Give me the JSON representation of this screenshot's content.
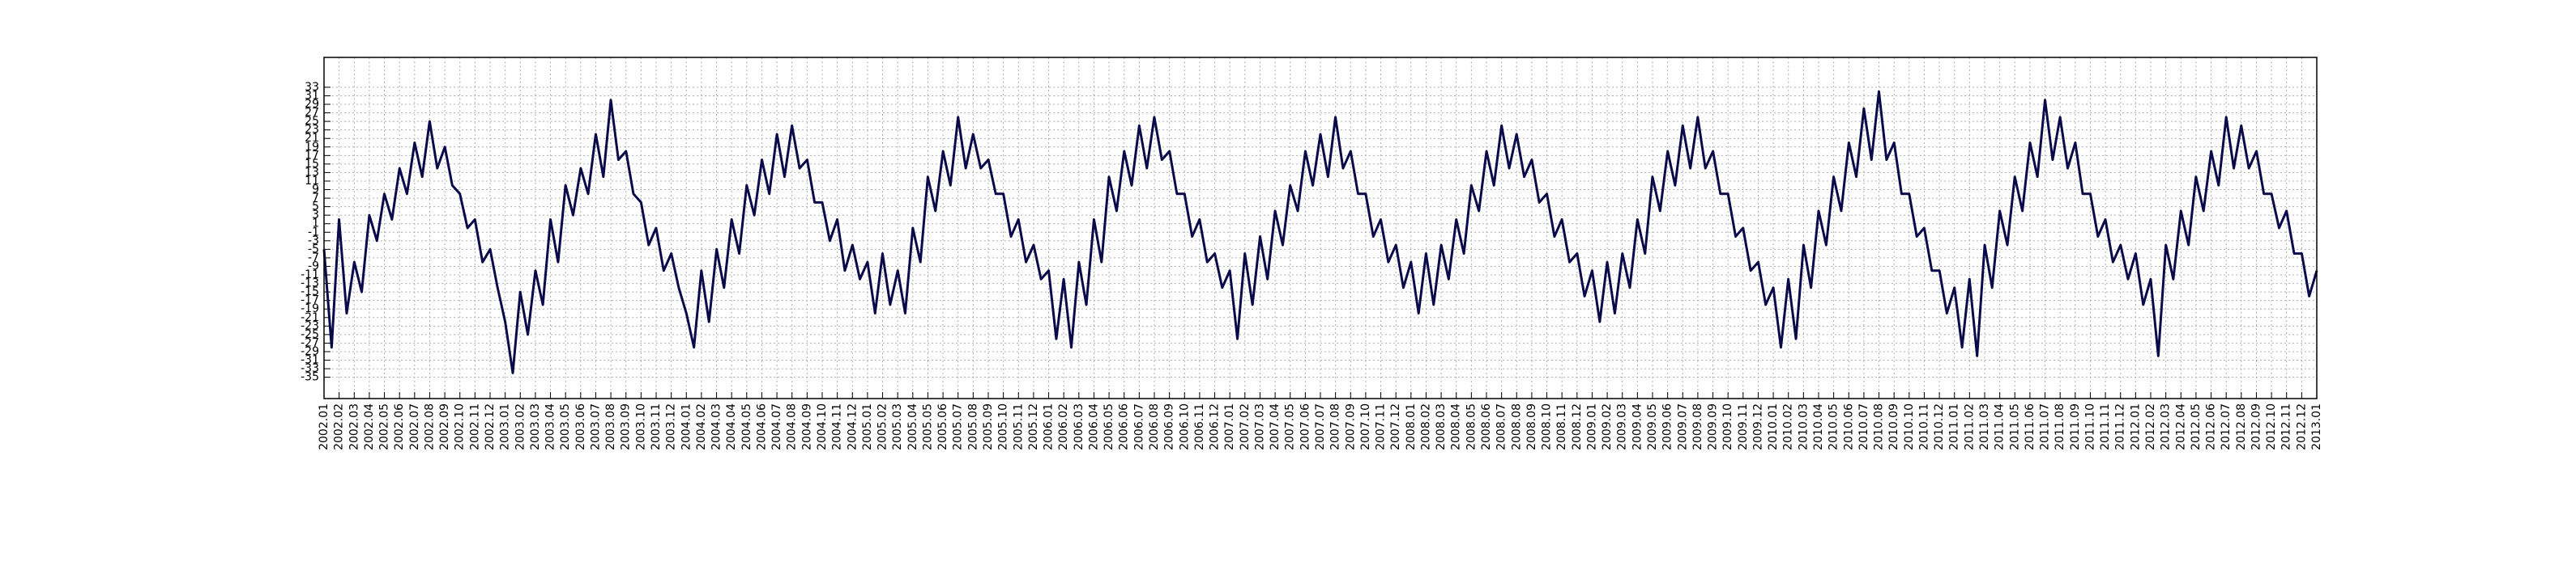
{
  "chart_data": {
    "type": "line",
    "color": "#0a0a4a",
    "grid": true,
    "xlim": [
      2002,
      2013
    ],
    "ylim": [
      -40,
      40
    ],
    "yticks": [
      -35,
      -33,
      -31,
      -29,
      -27,
      -25,
      -23,
      -21,
      -19,
      -17,
      -15,
      -13,
      -11,
      -9,
      -7,
      -5,
      -3,
      -1,
      1,
      3,
      5,
      7,
      9,
      11,
      13,
      15,
      17,
      19,
      21,
      23,
      25,
      27,
      29,
      31,
      33
    ],
    "xticks": [
      {
        "value": 2002,
        "label": "2002.01"
      },
      {
        "value": 2002.0833,
        "label": "2002.02"
      },
      {
        "value": 2002.1667,
        "label": "2002.03"
      },
      {
        "value": 2002.25,
        "label": "2002.04"
      },
      {
        "value": 2002.3333,
        "label": "2002.05"
      },
      {
        "value": 2002.4167,
        "label": "2002.06"
      },
      {
        "value": 2002.5,
        "label": "2002.07"
      },
      {
        "value": 2002.5833,
        "label": "2002.08"
      },
      {
        "value": 2002.6667,
        "label": "2002.09"
      },
      {
        "value": 2002.75,
        "label": "2002.10"
      },
      {
        "value": 2002.8333,
        "label": "2002.11"
      },
      {
        "value": 2002.9167,
        "label": "2002.12"
      },
      {
        "value": 2003,
        "label": "2003.01"
      },
      {
        "value": 2003.0833,
        "label": "2003.02"
      },
      {
        "value": 2003.1667,
        "label": "2003.03"
      },
      {
        "value": 2003.25,
        "label": "2003.04"
      },
      {
        "value": 2003.3333,
        "label": "2003.05"
      },
      {
        "value": 2003.4167,
        "label": "2003.06"
      },
      {
        "value": 2003.5,
        "label": "2003.07"
      },
      {
        "value": 2003.5833,
        "label": "2003.08"
      },
      {
        "value": 2003.6667,
        "label": "2003.09"
      },
      {
        "value": 2003.75,
        "label": "2003.10"
      },
      {
        "value": 2003.8333,
        "label": "2003.11"
      },
      {
        "value": 2003.9167,
        "label": "2003.12"
      },
      {
        "value": 2004,
        "label": "2004.01"
      },
      {
        "value": 2004.0833,
        "label": "2004.02"
      },
      {
        "value": 2004.1667,
        "label": "2004.03"
      },
      {
        "value": 2004.25,
        "label": "2004.04"
      },
      {
        "value": 2004.3333,
        "label": "2004.05"
      },
      {
        "value": 2004.4167,
        "label": "2004.06"
      },
      {
        "value": 2004.5,
        "label": "2004.07"
      },
      {
        "value": 2004.5833,
        "label": "2004.08"
      },
      {
        "value": 2004.6667,
        "label": "2004.09"
      },
      {
        "value": 2004.75,
        "label": "2004.10"
      },
      {
        "value": 2004.8333,
        "label": "2004.11"
      },
      {
        "value": 2004.9167,
        "label": "2004.12"
      },
      {
        "value": 2005,
        "label": "2005.01"
      },
      {
        "value": 2005.0833,
        "label": "2005.02"
      },
      {
        "value": 2005.1667,
        "label": "2005.03"
      },
      {
        "value": 2005.25,
        "label": "2005.04"
      },
      {
        "value": 2005.3333,
        "label": "2005.05"
      },
      {
        "value": 2005.4167,
        "label": "2005.06"
      },
      {
        "value": 2005.5,
        "label": "2005.07"
      },
      {
        "value": 2005.5833,
        "label": "2005.08"
      },
      {
        "value": 2005.6667,
        "label": "2005.09"
      },
      {
        "value": 2005.75,
        "label": "2005.10"
      },
      {
        "value": 2005.8333,
        "label": "2005.11"
      },
      {
        "value": 2005.9167,
        "label": "2005.12"
      },
      {
        "value": 2006,
        "label": "2006.01"
      },
      {
        "value": 2006.0833,
        "label": "2006.02"
      },
      {
        "value": 2006.1667,
        "label": "2006.03"
      },
      {
        "value": 2006.25,
        "label": "2006.04"
      },
      {
        "value": 2006.3333,
        "label": "2006.05"
      },
      {
        "value": 2006.4167,
        "label": "2006.06"
      },
      {
        "value": 2006.5,
        "label": "2006.07"
      },
      {
        "value": 2006.5833,
        "label": "2006.08"
      },
      {
        "value": 2006.6667,
        "label": "2006.09"
      },
      {
        "value": 2006.75,
        "label": "2006.10"
      },
      {
        "value": 2006.8333,
        "label": "2006.11"
      },
      {
        "value": 2006.9167,
        "label": "2006.12"
      },
      {
        "value": 2007,
        "label": "2007.01"
      },
      {
        "value": 2007.0833,
        "label": "2007.02"
      },
      {
        "value": 2007.1667,
        "label": "2007.03"
      },
      {
        "value": 2007.25,
        "label": "2007.04"
      },
      {
        "value": 2007.3333,
        "label": "2007.05"
      },
      {
        "value": 2007.4167,
        "label": "2007.06"
      },
      {
        "value": 2007.5,
        "label": "2007.07"
      },
      {
        "value": 2007.5833,
        "label": "2007.08"
      },
      {
        "value": 2007.6667,
        "label": "2007.09"
      },
      {
        "value": 2007.75,
        "label": "2007.10"
      },
      {
        "value": 2007.8333,
        "label": "2007.11"
      },
      {
        "value": 2007.9167,
        "label": "2007.12"
      },
      {
        "value": 2008,
        "label": "2008.01"
      },
      {
        "value": 2008.0833,
        "label": "2008.02"
      },
      {
        "value": 2008.1667,
        "label": "2008.03"
      },
      {
        "value": 2008.25,
        "label": "2008.04"
      },
      {
        "value": 2008.3333,
        "label": "2008.05"
      },
      {
        "value": 2008.4167,
        "label": "2008.06"
      },
      {
        "value": 2008.5,
        "label": "2008.07"
      },
      {
        "value": 2008.5833,
        "label": "2008.08"
      },
      {
        "value": 2008.6667,
        "label": "2008.09"
      },
      {
        "value": 2008.75,
        "label": "2008.10"
      },
      {
        "value": 2008.8333,
        "label": "2008.11"
      },
      {
        "value": 2008.9167,
        "label": "2008.12"
      },
      {
        "value": 2009,
        "label": "2009.01"
      },
      {
        "value": 2009.0833,
        "label": "2009.02"
      },
      {
        "value": 2009.1667,
        "label": "2009.03"
      },
      {
        "value": 2009.25,
        "label": "2009.04"
      },
      {
        "value": 2009.3333,
        "label": "2009.05"
      },
      {
        "value": 2009.4167,
        "label": "2009.06"
      },
      {
        "value": 2009.5,
        "label": "2009.07"
      },
      {
        "value": 2009.5833,
        "label": "2009.08"
      },
      {
        "value": 2009.6667,
        "label": "2009.09"
      },
      {
        "value": 2009.75,
        "label": "2009.10"
      },
      {
        "value": 2009.8333,
        "label": "2009.11"
      },
      {
        "value": 2009.9167,
        "label": "2009.12"
      },
      {
        "value": 2010,
        "label": "2010.01"
      },
      {
        "value": 2010.0833,
        "label": "2010.02"
      },
      {
        "value": 2010.1667,
        "label": "2010.03"
      },
      {
        "value": 2010.25,
        "label": "2010.04"
      },
      {
        "value": 2010.3333,
        "label": "2010.05"
      },
      {
        "value": 2010.4167,
        "label": "2010.06"
      },
      {
        "value": 2010.5,
        "label": "2010.07"
      },
      {
        "value": 2010.5833,
        "label": "2010.08"
      },
      {
        "value": 2010.6667,
        "label": "2010.09"
      },
      {
        "value": 2010.75,
        "label": "2010.10"
      },
      {
        "value": 2010.8333,
        "label": "2010.11"
      },
      {
        "value": 2010.9167,
        "label": "2010.12"
      },
      {
        "value": 2011,
        "label": "2011.01"
      },
      {
        "value": 2011.0833,
        "label": "2011.02"
      },
      {
        "value": 2011.1667,
        "label": "2011.03"
      },
      {
        "value": 2011.25,
        "label": "2011.04"
      },
      {
        "value": 2011.3333,
        "label": "2011.05"
      },
      {
        "value": 2011.4167,
        "label": "2011.06"
      },
      {
        "value": 2011.5,
        "label": "2011.07"
      },
      {
        "value": 2011.5833,
        "label": "2011.08"
      },
      {
        "value": 2011.6667,
        "label": "2011.09"
      },
      {
        "value": 2011.75,
        "label": "2011.10"
      },
      {
        "value": 2011.8333,
        "label": "2011.11"
      },
      {
        "value": 2011.9167,
        "label": "2011.12"
      },
      {
        "value": 2012,
        "label": "2012.01"
      },
      {
        "value": 2012.0833,
        "label": "2012.02"
      },
      {
        "value": 2012.1667,
        "label": "2012.03"
      },
      {
        "value": 2012.25,
        "label": "2012.04"
      },
      {
        "value": 2012.3333,
        "label": "2012.05"
      },
      {
        "value": 2012.4167,
        "label": "2012.06"
      },
      {
        "value": 2012.5,
        "label": "2012.07"
      },
      {
        "value": 2012.5833,
        "label": "2012.08"
      },
      {
        "value": 2012.6667,
        "label": "2012.09"
      },
      {
        "value": 2012.75,
        "label": "2012.10"
      },
      {
        "value": 2012.8333,
        "label": "2012.11"
      },
      {
        "value": 2012.9167,
        "label": "2012.12"
      },
      {
        "value": 2013,
        "label": "2013.01"
      }
    ],
    "x": [
      2002,
      2002.042,
      2002.083,
      2002.125,
      2002.167,
      2002.208,
      2002.25,
      2002.292,
      2002.333,
      2002.375,
      2002.417,
      2002.458,
      2002.5,
      2002.542,
      2002.583,
      2002.625,
      2002.667,
      2002.708,
      2002.75,
      2002.792,
      2002.833,
      2002.875,
      2002.917,
      2002.958,
      2003,
      2003.042,
      2003.083,
      2003.125,
      2003.167,
      2003.208,
      2003.25,
      2003.292,
      2003.333,
      2003.375,
      2003.417,
      2003.458,
      2003.5,
      2003.542,
      2003.583,
      2003.625,
      2003.667,
      2003.708,
      2003.75,
      2003.792,
      2003.833,
      2003.875,
      2003.917,
      2003.958,
      2004,
      2004.042,
      2004.083,
      2004.125,
      2004.167,
      2004.208,
      2004.25,
      2004.292,
      2004.333,
      2004.375,
      2004.417,
      2004.458,
      2004.5,
      2004.542,
      2004.583,
      2004.625,
      2004.667,
      2004.708,
      2004.75,
      2004.792,
      2004.833,
      2004.875,
      2004.917,
      2004.958,
      2005,
      2005.042,
      2005.083,
      2005.125,
      2005.167,
      2005.208,
      2005.25,
      2005.292,
      2005.333,
      2005.375,
      2005.417,
      2005.458,
      2005.5,
      2005.542,
      2005.583,
      2005.625,
      2005.667,
      2005.708,
      2005.75,
      2005.792,
      2005.833,
      2005.875,
      2005.917,
      2005.958,
      2006,
      2006.042,
      2006.083,
      2006.125,
      2006.167,
      2006.208,
      2006.25,
      2006.292,
      2006.333,
      2006.375,
      2006.417,
      2006.458,
      2006.5,
      2006.542,
      2006.583,
      2006.625,
      2006.667,
      2006.708,
      2006.75,
      2006.792,
      2006.833,
      2006.875,
      2006.917,
      2006.958,
      2007,
      2007.042,
      2007.083,
      2007.125,
      2007.167,
      2007.208,
      2007.25,
      2007.292,
      2007.333,
      2007.375,
      2007.417,
      2007.458,
      2007.5,
      2007.542,
      2007.583,
      2007.625,
      2007.667,
      2007.708,
      2007.75,
      2007.792,
      2007.833,
      2007.875,
      2007.917,
      2007.958,
      2008,
      2008.042,
      2008.083,
      2008.125,
      2008.167,
      2008.208,
      2008.25,
      2008.292,
      2008.333,
      2008.375,
      2008.417,
      2008.458,
      2008.5,
      2008.542,
      2008.583,
      2008.625,
      2008.667,
      2008.708,
      2008.75,
      2008.792,
      2008.833,
      2008.875,
      2008.917,
      2008.958,
      2009,
      2009.042,
      2009.083,
      2009.125,
      2009.167,
      2009.208,
      2009.25,
      2009.292,
      2009.333,
      2009.375,
      2009.417,
      2009.458,
      2009.5,
      2009.542,
      2009.583,
      2009.625,
      2009.667,
      2009.708,
      2009.75,
      2009.792,
      2009.833,
      2009.875,
      2009.917,
      2009.958,
      2010,
      2010.042,
      2010.083,
      2010.125,
      2010.167,
      2010.208,
      2010.25,
      2010.292,
      2010.333,
      2010.375,
      2010.417,
      2010.458,
      2010.5,
      2010.542,
      2010.583,
      2010.625,
      2010.667,
      2010.708,
      2010.75,
      2010.792,
      2010.833,
      2010.875,
      2010.917,
      2010.958,
      2011,
      2011.042,
      2011.083,
      2011.125,
      2011.167,
      2011.208,
      2011.25,
      2011.292,
      2011.333,
      2011.375,
      2011.417,
      2011.458,
      2011.5,
      2011.542,
      2011.583,
      2011.625,
      2011.667,
      2011.708,
      2011.75,
      2011.792,
      2011.833,
      2011.875,
      2011.917,
      2011.958,
      2012,
      2012.042,
      2012.083,
      2012.125,
      2012.167,
      2012.208,
      2012.25,
      2012.292,
      2012.333,
      2012.375,
      2012.417,
      2012.458,
      2012.5,
      2012.542,
      2012.583,
      2012.625,
      2012.667,
      2012.708,
      2012.75,
      2012.792,
      2012.833,
      2012.875,
      2012.917,
      2012.958,
      2013
    ],
    "values": [
      -5,
      -28,
      2,
      -20,
      -8,
      -15,
      3,
      -3,
      8,
      2,
      14,
      8,
      20,
      12,
      25,
      14,
      19,
      10,
      8,
      0,
      2,
      -8,
      -5,
      -14,
      -22,
      -34,
      -15,
      -25,
      -10,
      -18,
      2,
      -8,
      10,
      3,
      14,
      8,
      22,
      12,
      30,
      16,
      18,
      8,
      6,
      -4,
      0,
      -10,
      -6,
      -14,
      -20,
      -28,
      -10,
      -22,
      -5,
      -14,
      2,
      -6,
      10,
      3,
      16,
      8,
      22,
      12,
      24,
      14,
      16,
      6,
      6,
      -3,
      2,
      -10,
      -4,
      -12,
      -8,
      -20,
      -6,
      -18,
      -10,
      -20,
      0,
      -8,
      12,
      4,
      18,
      10,
      26,
      14,
      22,
      14,
      16,
      8,
      8,
      -2,
      2,
      -8,
      -4,
      -12,
      -10,
      -26,
      -12,
      -28,
      -8,
      -18,
      2,
      -8,
      12,
      4,
      18,
      10,
      24,
      14,
      26,
      16,
      18,
      8,
      8,
      -2,
      2,
      -8,
      -6,
      -14,
      -10,
      -26,
      -6,
      -18,
      -2,
      -12,
      4,
      -4,
      10,
      4,
      18,
      10,
      22,
      12,
      26,
      14,
      18,
      8,
      8,
      -2,
      2,
      -8,
      -4,
      -14,
      -8,
      -20,
      -6,
      -18,
      -4,
      -12,
      2,
      -6,
      10,
      4,
      18,
      10,
      24,
      14,
      22,
      12,
      16,
      6,
      8,
      -2,
      2,
      -8,
      -6,
      -16,
      -10,
      -22,
      -8,
      -20,
      -6,
      -14,
      2,
      -6,
      12,
      4,
      18,
      10,
      24,
      14,
      26,
      14,
      18,
      8,
      8,
      -2,
      0,
      -10,
      -8,
      -18,
      -14,
      -28,
      -12,
      -26,
      -4,
      -14,
      4,
      -4,
      12,
      4,
      20,
      12,
      28,
      16,
      32,
      16,
      20,
      8,
      8,
      -2,
      0,
      -10,
      -10,
      -20,
      -14,
      -28,
      -12,
      -30,
      -4,
      -14,
      4,
      -4,
      12,
      4,
      20,
      12,
      30,
      16,
      26,
      14,
      20,
      8,
      8,
      -2,
      2,
      -8,
      -4,
      -12,
      -6,
      -18,
      -12,
      -30,
      -4,
      -12,
      4,
      -4,
      12,
      4,
      18,
      10,
      26,
      14,
      24,
      14,
      18,
      8,
      8,
      0,
      4,
      -6,
      -6,
      -16,
      -10
    ]
  }
}
